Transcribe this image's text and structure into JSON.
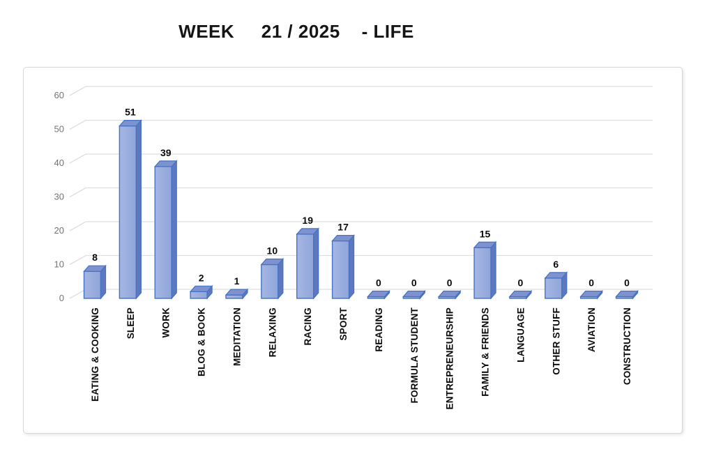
{
  "title": "WEEK     21 / 2025    - LIFE",
  "chart_data": {
    "type": "bar",
    "style": "3d",
    "title": "WEEK 21 / 2025 - LIFE",
    "xlabel": "",
    "ylabel": "",
    "categories": [
      "EATING & COOKING",
      "SLEEP",
      "WORK",
      "BLOG & BOOK",
      "MEDITATION",
      "RELAXING",
      "RACING",
      "SPORT",
      "READING",
      "FORMULA STUDENT",
      "ENTREPRENEURSHIP",
      "FAMILY & FRIENDS",
      "LANGUAGE",
      "OTHER STUFF",
      "AVIATION",
      "CONSTRUCTION"
    ],
    "values": [
      8,
      51,
      39,
      2,
      1,
      10,
      19,
      17,
      0,
      0,
      0,
      15,
      0,
      6,
      0,
      0
    ],
    "ylim": [
      0,
      60
    ],
    "yticks": [
      0,
      10,
      20,
      30,
      40,
      50,
      60
    ],
    "grid": true,
    "legend": false,
    "value_labels_shown": true,
    "colors": {
      "bar_front_light": "#a5b6e3",
      "bar_front": "#8fa5da",
      "bar_side": "#5e78bf",
      "bar_top": "#7d92ce",
      "bar_border": "#4472c4",
      "gridline": "#dedede",
      "tick_label": "#737373",
      "value_label": "#0b0b0b",
      "category_label": "#0b0b0b",
      "frame_border": "#d7d7d7"
    }
  }
}
